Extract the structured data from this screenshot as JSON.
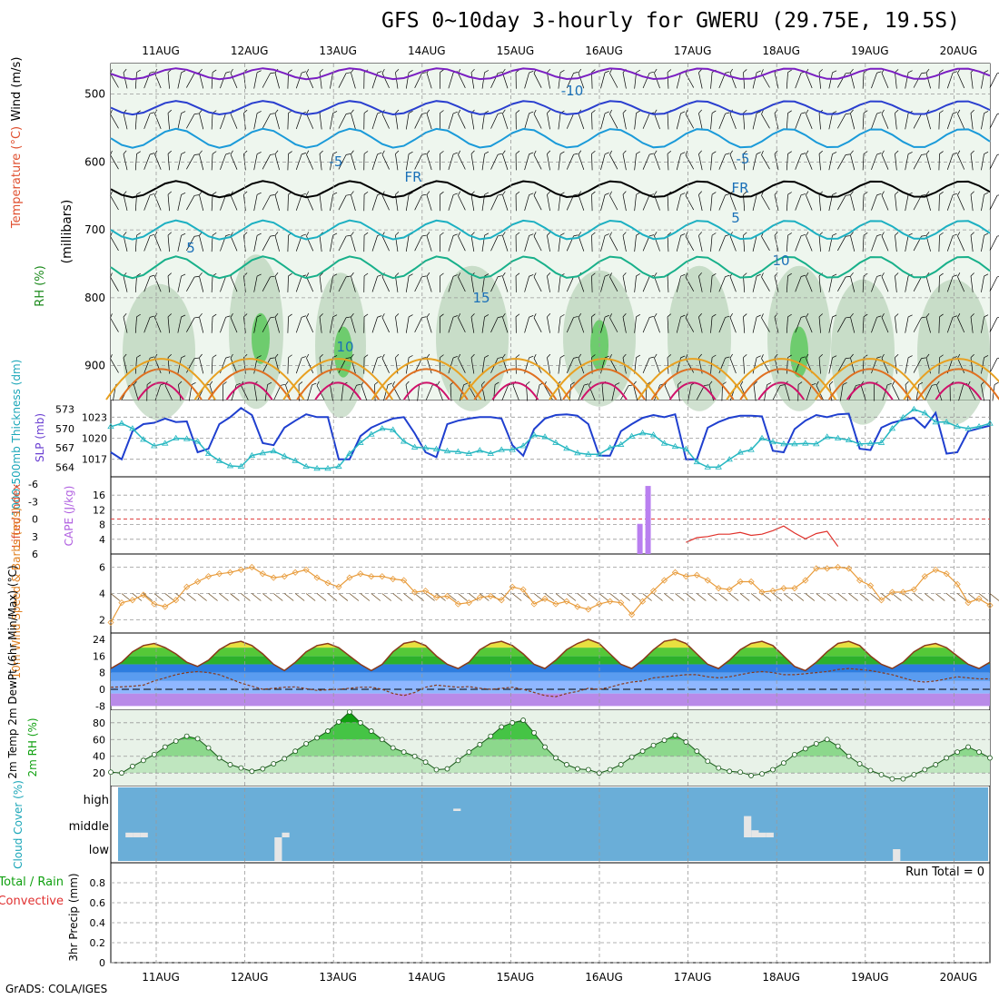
{
  "header": {
    "title": "GFS 0~10day 3-hourly for GWERU (29.75E, 19.5S)",
    "footer": "GrADS: COLA/IGES"
  },
  "chart_data": {
    "type": "meteogram",
    "dates": [
      "11AUG",
      "12AUG",
      "13AUG",
      "14AUG",
      "15AUG",
      "16AUG",
      "17AUG",
      "18AUG",
      "19AUG",
      "20AUG"
    ],
    "panels": [
      {
        "id": "upper-air",
        "ylabel_rh": "RH (%)",
        "ylabel_temp": "Temperature (°C)",
        "ylabel_wind": "Wind (m/s)",
        "ylabel_p": "(millibars)",
        "yticks": [
          500,
          600,
          700,
          800,
          900
        ],
        "contour_labels": [
          "-10",
          "-5",
          "-5",
          "5",
          "5",
          "10",
          "10",
          "15",
          "FR",
          "FR"
        ]
      },
      {
        "id": "slp-thickness",
        "ylabel_left": "1000-500mb Thickness (dm)",
        "ylabel_right": "SLP (mb)",
        "yticks_left": [
          564,
          567,
          570,
          573
        ],
        "yticks_right": [
          1017,
          1020,
          1023
        ],
        "slp": [
          1018.0,
          1017.0,
          1021.0,
          1022.0,
          1022.2,
          1022.8,
          1022.3,
          1022.4,
          1018.0,
          1018.5,
          1022.0,
          1023.0,
          1024.3,
          1023.3,
          1019.3,
          1019.0,
          1021.5,
          1022.5,
          1023.4,
          1023.0,
          1023.0,
          1017.0,
          1017.0,
          1020.3,
          1021.5,
          1022.2,
          1022.8,
          1023.0,
          1020.7,
          1018.0,
          1017.3,
          1022.0,
          1022.5,
          1022.8,
          1023.0,
          1023.0,
          1022.8,
          1019.0,
          1017.5,
          1021.3,
          1022.8,
          1023.3,
          1023.4,
          1023.2,
          1022.0,
          1017.5,
          1017.5,
          1021.0,
          1022.0,
          1022.9,
          1023.3,
          1023.0,
          1023.4,
          1017.0,
          1017.0,
          1021.5,
          1022.3,
          1022.9,
          1023.2,
          1023.2,
          1023.1,
          1018.2,
          1018.0,
          1021.3,
          1022.5,
          1023.3,
          1023.0,
          1023.4,
          1023.5,
          1018.5,
          1018.3,
          1021.5,
          1022.2,
          1022.6,
          1022.9,
          1021.5,
          1023.6,
          1017.8,
          1018.0,
          1021.0,
          1021.4,
          1021.8
        ],
        "thickness": [
          570.3,
          570.8,
          570.0,
          568.3,
          567.3,
          567.7,
          568.5,
          568.4,
          568.0,
          566.1,
          565.0,
          564.2,
          564.1,
          565.8,
          566.2,
          566.5,
          565.7,
          565.0,
          564.1,
          563.8,
          563.8,
          564.1,
          566.1,
          567.8,
          569.1,
          570.0,
          569.8,
          568.0,
          567.1,
          567.0,
          566.8,
          566.5,
          566.4,
          566.1,
          566.6,
          566.1,
          566.7,
          566.7,
          567.3,
          569.0,
          568.7,
          567.8,
          566.9,
          566.2,
          566.0,
          566.0,
          567.0,
          567.5,
          568.8,
          569.3,
          569.0,
          567.7,
          567.2,
          566.8,
          564.8,
          564.0,
          564.0,
          565.2,
          566.3,
          566.7,
          568.5,
          567.9,
          567.6,
          567.6,
          567.7,
          567.6,
          568.7,
          568.5,
          568.2,
          567.6,
          567.7,
          567.8,
          570.0,
          571.7,
          573.0,
          572.4,
          571.0,
          571.0,
          570.3,
          570.0,
          570.3,
          570.8
        ]
      },
      {
        "id": "cape-li",
        "ylabel_li": "Lifted Index",
        "ylabel_cape": "CAPE (J/kg)",
        "li_ticks": [
          "-6",
          "-3",
          "0",
          "3",
          "6"
        ],
        "cape_ticks": [
          4,
          8,
          12,
          16
        ],
        "li": [
          null,
          null,
          null,
          null,
          null,
          null,
          null,
          null,
          null,
          null,
          null,
          null,
          null,
          null,
          null,
          null,
          null,
          null,
          null,
          null,
          null,
          null,
          null,
          null,
          null,
          null,
          null,
          null,
          null,
          null,
          null,
          null,
          null,
          null,
          null,
          null,
          null,
          null,
          null,
          null,
          null,
          null,
          null,
          null,
          null,
          null,
          null,
          null,
          null,
          null,
          null,
          null,
          null,
          4.0,
          3.2,
          3.0,
          2.6,
          2.6,
          2.3,
          2.8,
          2.6,
          2.0,
          1.2,
          2.4,
          3.4,
          2.5,
          2.1,
          4.7,
          null,
          null,
          null,
          null,
          null,
          null,
          null,
          null,
          null,
          null,
          null,
          null,
          null,
          null
        ],
        "cape": [
          {
            "time_index": 65,
            "value": 8.2
          },
          {
            "time_index": 66,
            "value": 18.5
          }
        ]
      },
      {
        "id": "wind10m",
        "ylabel": "10m Wind Speed & Barbs (m/s)",
        "yticks": [
          2,
          4,
          6
        ],
        "speed": [
          1.8,
          3.3,
          3.5,
          3.9,
          3.2,
          3.0,
          3.5,
          4.5,
          4.9,
          5.3,
          5.5,
          5.6,
          5.8,
          6.0,
          5.5,
          5.2,
          5.3,
          5.6,
          5.8,
          5.2,
          4.8,
          4.5,
          5.2,
          5.5,
          5.3,
          5.3,
          5.1,
          5.0,
          4.1,
          4.2,
          3.7,
          3.8,
          3.2,
          3.3,
          3.7,
          3.8,
          3.5,
          4.5,
          4.3,
          3.2,
          3.6,
          3.2,
          3.4,
          3.0,
          2.8,
          3.2,
          3.4,
          3.3,
          2.4,
          3.4,
          4.2,
          5.0,
          5.6,
          5.3,
          5.4,
          5.0,
          4.4,
          4.3,
          4.9,
          4.9,
          4.1,
          4.2,
          4.4,
          4.4,
          5.0,
          5.9,
          5.9,
          6.0,
          5.9,
          5.0,
          4.6,
          3.5,
          4.1,
          4.1,
          4.3,
          5.3,
          5.8,
          5.5,
          4.7,
          3.3,
          3.6,
          3.1
        ]
      },
      {
        "id": "temp2m",
        "ylabel": "2m Temp 2m DewPt (6hr Min/Max) (°C)",
        "yticks": [
          -8,
          0,
          8,
          16,
          24
        ],
        "temp": [
          10,
          13,
          18,
          21,
          22,
          20,
          17,
          13,
          11,
          14,
          19,
          22,
          23,
          21,
          17,
          12,
          9,
          13,
          18,
          21,
          22,
          20,
          16,
          12,
          9,
          12,
          18,
          22,
          23,
          21,
          16,
          12,
          10,
          13,
          19,
          22,
          23,
          21,
          17,
          12,
          10,
          14,
          19,
          22,
          24,
          22,
          17,
          12,
          10,
          14,
          19,
          23,
          24,
          22,
          17,
          12,
          10,
          14,
          19,
          22,
          23,
          21,
          16,
          11,
          9,
          13,
          18,
          22,
          23,
          21,
          16,
          12,
          10,
          13,
          18,
          21,
          22,
          20,
          16,
          12,
          10,
          13
        ],
        "dewpt": [
          1.0,
          1.2,
          1.5,
          2.0,
          4.0,
          5.5,
          7.0,
          8.0,
          8.5,
          8.0,
          7.0,
          5.0,
          3.0,
          1.5,
          0.0,
          0.5,
          1.0,
          1.2,
          0.3,
          -0.5,
          -0.2,
          0.0,
          0.5,
          1.0,
          1.0,
          0.0,
          -2.0,
          -3.0,
          -1.5,
          1.0,
          2.0,
          1.5,
          1.0,
          1.3,
          0.5,
          0.0,
          0.5,
          1.0,
          0.0,
          -1.5,
          -3.0,
          -3.5,
          -2.0,
          -1.0,
          0.5,
          0.0,
          1.0,
          2.5,
          3.5,
          4.0,
          5.5,
          6.0,
          6.5,
          7.0,
          7.0,
          6.0,
          5.5,
          6.0,
          7.0,
          8.0,
          8.5,
          8.0,
          7.0,
          7.0,
          7.5,
          8.0,
          8.5,
          9.5,
          10.0,
          9.5,
          9.0,
          8.0,
          7.0,
          5.5,
          4.0,
          3.5,
          4.0,
          5.0,
          6.0,
          5.5,
          5.0,
          5.0
        ]
      },
      {
        "id": "rh2m",
        "ylabel": "2m RH (%)",
        "yticks": [
          20,
          40,
          60,
          80
        ],
        "rh": [
          21,
          20,
          28,
          35,
          42,
          51,
          58,
          64,
          61,
          50,
          38,
          30,
          26,
          22,
          25,
          31,
          37,
          46,
          55,
          62,
          70,
          81,
          93,
          80,
          70,
          60,
          50,
          45,
          40,
          33,
          24,
          25,
          35,
          45,
          54,
          64,
          75,
          80,
          83,
          68,
          51,
          38,
          30,
          25,
          24,
          20,
          24,
          30,
          39,
          46,
          53,
          59,
          65,
          57,
          46,
          34,
          26,
          22,
          21,
          17,
          19,
          24,
          32,
          42,
          49,
          55,
          60,
          52,
          40,
          31,
          23,
          18,
          13,
          13,
          18,
          24,
          30,
          38,
          45,
          51,
          45,
          38
        ]
      },
      {
        "id": "cloud",
        "ylabel": "Cloud Cover (%)",
        "ytick_labels": [
          "low",
          "middle",
          "high"
        ],
        "cloud_cells": [
          {
            "level": "middle",
            "time_index": 1,
            "value": 20
          },
          {
            "level": "middle",
            "time_index": 2,
            "value": 20
          },
          {
            "level": "middle",
            "time_index": 3,
            "value": 20
          },
          {
            "level": "low",
            "time_index": 21,
            "value": 100
          },
          {
            "level": "middle",
            "time_index": 22,
            "value": 20
          },
          {
            "level": "high",
            "time_index": 45,
            "value": 10
          },
          {
            "level": "middle",
            "time_index": 84,
            "value": 90
          },
          {
            "level": "middle",
            "time_index": 85,
            "value": 30
          },
          {
            "level": "middle",
            "time_index": 86,
            "value": 20
          },
          {
            "level": "middle",
            "time_index": 87,
            "value": 20
          },
          {
            "level": "low",
            "time_index": 104,
            "value": 50
          }
        ]
      },
      {
        "id": "precip",
        "ylabel_total": "Total / Rain",
        "ylabel_conv": "Convective",
        "ylabel": "3hr Precip (mm)",
        "yticks": [
          0,
          0.2,
          0.4,
          0.6,
          0.8
        ],
        "ylim": [
          0,
          1
        ],
        "run_total": "Run Total = 0"
      }
    ],
    "colors": {
      "rh_fill": "#5ec95e",
      "temp_line": "#e8a020",
      "slp_line": "#1f3fcf",
      "thickness_line": "#25b7c1",
      "li_line": "#e0302a",
      "cape_bar": "#b97ff0",
      "wind_speed": "#e89b3a",
      "cloud_bg": "#6aaed8"
    }
  }
}
